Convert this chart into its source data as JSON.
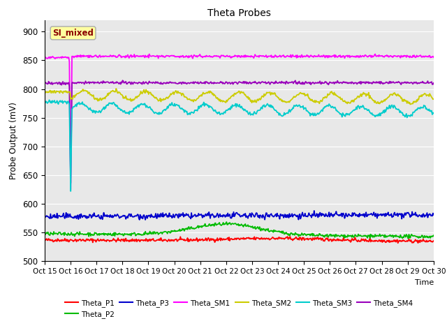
{
  "title": "Theta Probes",
  "ylabel": "Probe Output (mV)",
  "xlabel": "Time",
  "xlim": [
    0,
    15
  ],
  "ylim": [
    500,
    920
  ],
  "yticks": [
    500,
    550,
    600,
    650,
    700,
    750,
    800,
    850,
    900
  ],
  "xtick_labels": [
    "Oct 15",
    "Oct 16",
    "Oct 17",
    "Oct 18",
    "Oct 19",
    "Oct 20",
    "Oct 21",
    "Oct 22",
    "Oct 23",
    "Oct 24",
    "Oct 25",
    "Oct 26",
    "Oct 27",
    "Oct 28",
    "Oct 29",
    "Oct 30"
  ],
  "annotation_text": "SI_mixed",
  "annotation_color": "#8B0000",
  "annotation_bg": "#FFFFA0",
  "colors": {
    "Theta_P1": "#FF0000",
    "Theta_P2": "#00BB00",
    "Theta_P3": "#0000CC",
    "Theta_SM1": "#FF00FF",
    "Theta_SM2": "#CCCC00",
    "Theta_SM3": "#00CCCC",
    "Theta_SM4": "#9900BB"
  },
  "bg_color": "#E8E8E8",
  "grid_color": "#FFFFFF"
}
